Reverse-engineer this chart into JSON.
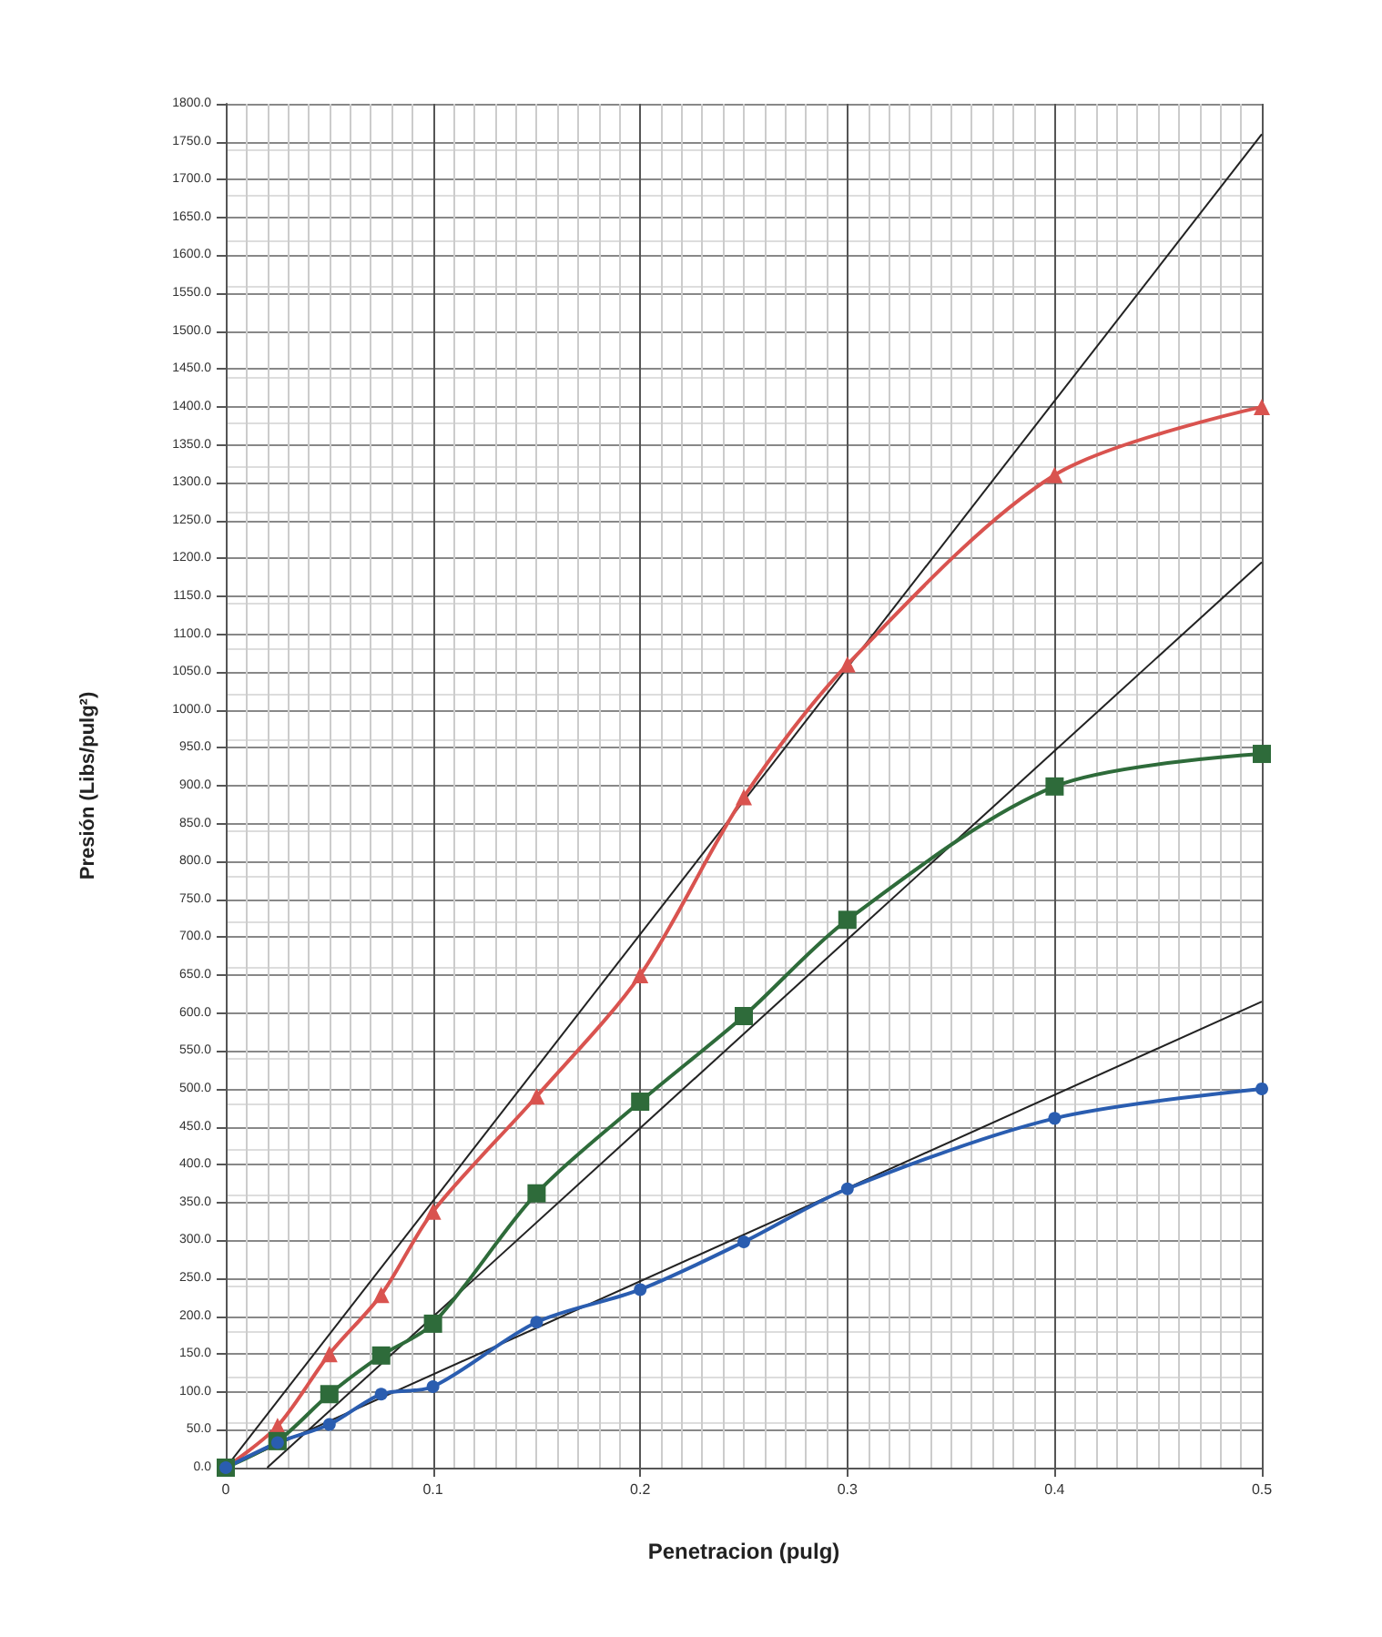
{
  "chart_data": {
    "type": "line",
    "xlabel": "Penetracion (pulg)",
    "ylabel": "Presión (Libs/pulg²)",
    "x": [
      0,
      0.025,
      0.05,
      0.075,
      0.1,
      0.15,
      0.2,
      0.25,
      0.3,
      0.4,
      0.5
    ],
    "series": [
      {
        "color": "#d9534f",
        "marker": "triangle",
        "values": [
          0,
          55,
          150,
          228,
          338,
          490,
          650,
          885,
          1060,
          1310,
          1400
        ]
      },
      {
        "color": "#2e6b3a",
        "marker": "square",
        "values": [
          0,
          35,
          97,
          148,
          190,
          362,
          483,
          596,
          723,
          899,
          942
        ]
      },
      {
        "color": "#2a5db0",
        "marker": "circle",
        "values": [
          0,
          33,
          57,
          97,
          107,
          192,
          235,
          298,
          368,
          461,
          500
        ]
      },
      {
        "type": "line",
        "color": "#222222",
        "marker": "none",
        "x": [
          0,
          0.5
        ],
        "values": [
          0,
          1760
        ]
      },
      {
        "type": "line",
        "color": "#222222",
        "marker": "none",
        "x": [
          0.02,
          0.5
        ],
        "values": [
          0,
          1195
        ]
      },
      {
        "type": "line",
        "color": "#222222",
        "marker": "none",
        "x": [
          0,
          0.5
        ],
        "values": [
          0,
          615
        ]
      }
    ],
    "xlim": [
      0,
      0.5
    ],
    "xticks": [
      0,
      0.1,
      0.2,
      0.3,
      0.4,
      0.5
    ],
    "ylim": [
      0,
      1800
    ],
    "yticks": [
      {
        "value": 0,
        "label": "0.0"
      },
      {
        "value": 50,
        "label": "50.0"
      },
      {
        "value": 100,
        "label": "100.0"
      },
      {
        "value": 150,
        "label": "150.0"
      },
      {
        "value": 200,
        "label": "200.0"
      },
      {
        "value": 250,
        "label": "250.0"
      },
      {
        "value": 300,
        "label": "300.0"
      },
      {
        "value": 350,
        "label": "350.0"
      },
      {
        "value": 400,
        "label": "400.0"
      },
      {
        "value": 450,
        "label": "450.0"
      },
      {
        "value": 500,
        "label": "500.0"
      },
      {
        "value": 550,
        "label": "550.0"
      },
      {
        "value": 600,
        "label": "600.0"
      },
      {
        "value": 650,
        "label": "650.0"
      },
      {
        "value": 700,
        "label": "700.0"
      },
      {
        "value": 750,
        "label": "750.0"
      },
      {
        "value": 800,
        "label": "800.0"
      },
      {
        "value": 850,
        "label": "850.0"
      },
      {
        "value": 900,
        "label": "900.0"
      },
      {
        "value": 950,
        "label": "950.0"
      },
      {
        "value": 1000,
        "label": "1000.0"
      },
      {
        "value": 1050,
        "label": "1050.0"
      },
      {
        "value": 1100,
        "label": "1100.0"
      },
      {
        "value": 1150,
        "label": "1150.0"
      },
      {
        "value": 1200,
        "label": "1200.0"
      },
      {
        "value": 1250,
        "label": "1250.0"
      },
      {
        "value": 1300,
        "label": "1300.0"
      },
      {
        "value": 1350,
        "label": "1350.0"
      },
      {
        "value": 1400,
        "label": "1400.0"
      },
      {
        "value": 1450,
        "label": "1450.0"
      },
      {
        "value": 1500,
        "label": "1500.0"
      },
      {
        "value": 1550,
        "label": "1550.0"
      },
      {
        "value": 1600,
        "label": "1600.0"
      },
      {
        "value": 1650,
        "label": "1650.0"
      },
      {
        "value": 1700,
        "label": "1700.0"
      },
      {
        "value": 1750,
        "label": "1750.0"
      },
      {
        "value": 1800,
        "label": "1800.0"
      }
    ],
    "grid": true
  }
}
